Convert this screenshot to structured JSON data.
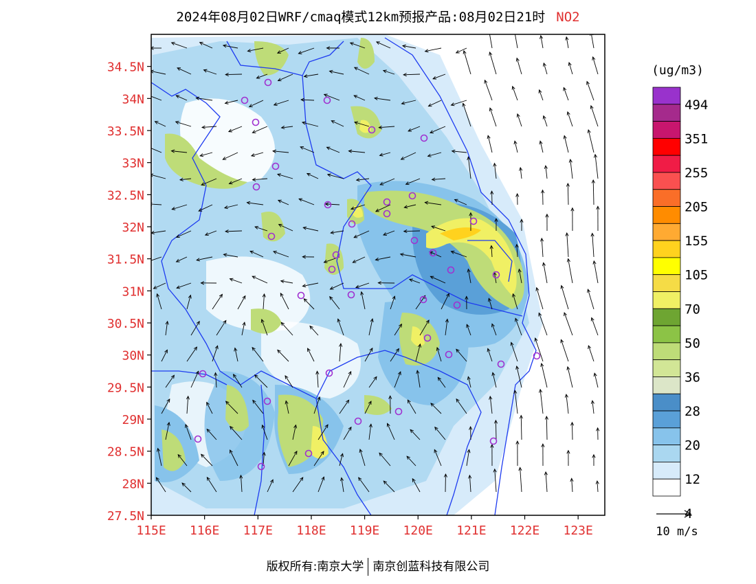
{
  "title": {
    "main": "2024年08月02日WRF/cmaq模式12km预报产品:08月02日21时",
    "variable": "NO2"
  },
  "axes": {
    "lat_labels": [
      "34.5N",
      "34N",
      "33.5N",
      "33N",
      "32.5N",
      "32N",
      "31.5N",
      "31N",
      "30.5N",
      "30N",
      "29.5N",
      "29N",
      "28.5N",
      "28N",
      "27.5N"
    ],
    "lon_labels": [
      "115E",
      "116E",
      "117E",
      "118E",
      "119E",
      "120E",
      "121E",
      "122E",
      "123E"
    ],
    "lon_range": [
      115,
      123.5
    ],
    "lat_range": [
      27.5,
      35
    ],
    "label_color": "#e03030"
  },
  "legend": {
    "unit": "(ug/m3)",
    "labels": [
      "494",
      "351",
      "255",
      "205",
      "155",
      "105",
      "70",
      "50",
      "36",
      "28",
      "20",
      "12",
      "4"
    ],
    "colors": [
      "#9932cc",
      "#a52a8c",
      "#c8166e",
      "#ff0000",
      "#f01c46",
      "#fa5050",
      "#fa6e28",
      "#ff8c00",
      "#ffaa32",
      "#ffd21e",
      "#ffff00",
      "#f5dc46",
      "#f0f064",
      "#6ea532",
      "#8cc346",
      "#bedc78",
      "#d2e696",
      "#dce6c8",
      "#4a8ec8",
      "#5aa0d8",
      "#87c3eb",
      "#aad7f0",
      "#d7ebfa",
      "#ffffff"
    ],
    "wind_ref": "10 m/s"
  },
  "footer": {
    "copyright": "版权所有:南京大学",
    "company": "南京创蓝科技有限公司"
  },
  "palette": {
    "lowblue": "#d7ebfa",
    "midblue": "#aad7f0",
    "blue": "#87c3eb",
    "deepblue": "#5aa0d8",
    "paleolive": "#dce6c8",
    "lightgreen": "#d2e696",
    "green": "#bedc78",
    "mediumgreen": "#8cc346",
    "yellowpale": "#f0f064",
    "yellow": "#ffff00",
    "orange": "#ffd21e",
    "boundary": "#1e3cf0",
    "site_marker": "#a030d0"
  }
}
